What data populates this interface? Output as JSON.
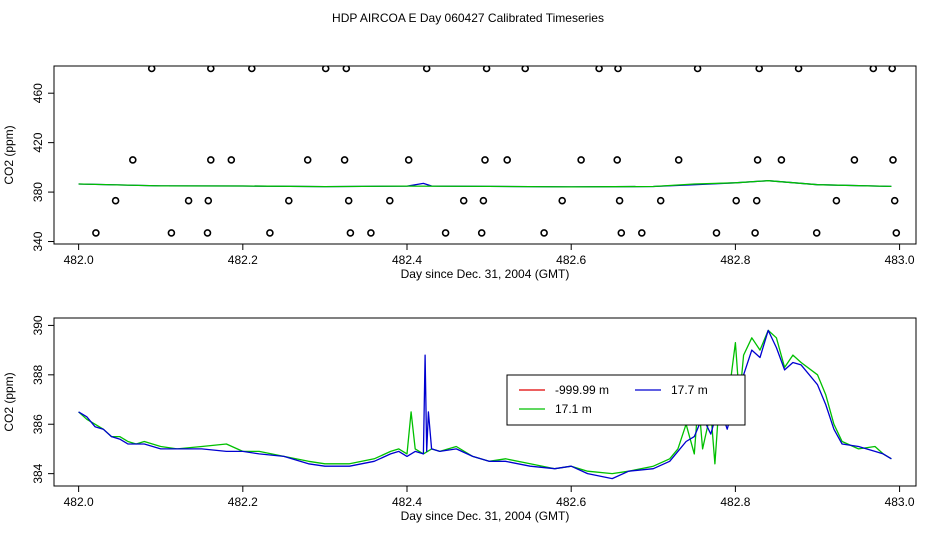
{
  "figure": {
    "title": "HDP AIRCOA E  Day 060427  Calibrated Timeseries"
  },
  "colors": {
    "red": "#e00000",
    "green": "#00c000",
    "blue": "#0000d0",
    "points": "#000000"
  },
  "chart_data": [
    {
      "type": "line",
      "xlabel": "Day since Dec. 31, 2004 (GMT)",
      "ylabel": "CO2 (ppm)",
      "xlim": [
        481.97,
        483.02
      ],
      "ylim": [
        338,
        482
      ],
      "xticks": [
        482.0,
        482.2,
        482.4,
        482.6,
        482.8,
        483.0
      ],
      "xtick_labels": [
        "482.0",
        "482.2",
        "482.4",
        "482.6",
        "482.8",
        "483.0"
      ],
      "yticks": [
        340,
        380,
        420,
        460
      ],
      "ytick_labels": [
        "340",
        "380",
        "420",
        "460"
      ],
      "series": [
        {
          "color": "blue",
          "x": [
            482.0,
            482.1,
            482.2,
            482.3,
            482.4,
            482.42,
            482.43,
            482.44,
            482.5,
            482.6,
            482.7,
            482.75,
            482.8,
            482.84,
            482.9,
            482.99
          ],
          "y": [
            386.5,
            385.0,
            384.9,
            384.4,
            384.8,
            387.0,
            384.9,
            384.8,
            384.6,
            384.2,
            384.5,
            386.0,
            387.5,
            389.2,
            386.0,
            384.6
          ]
        },
        {
          "color": "green",
          "x": [
            482.0,
            482.1,
            482.2,
            482.3,
            482.4,
            482.5,
            482.6,
            482.7,
            482.75,
            482.8,
            482.84,
            482.9,
            482.99
          ],
          "y": [
            386.5,
            385.0,
            384.9,
            384.4,
            384.8,
            384.6,
            384.2,
            384.5,
            386.5,
            387.5,
            389.2,
            386.0,
            384.6
          ]
        }
      ],
      "points": {
        "x": [
          482.021,
          482.045,
          482.066,
          482.089,
          482.113,
          482.134,
          482.157,
          482.158,
          482.161,
          482.161,
          482.186,
          482.211,
          482.233,
          482.256,
          482.279,
          482.301,
          482.324,
          482.326,
          482.329,
          482.331,
          482.356,
          482.379,
          482.402,
          482.424,
          482.447,
          482.469,
          482.491,
          482.493,
          482.495,
          482.497,
          482.522,
          482.544,
          482.567,
          482.589,
          482.612,
          482.634,
          482.656,
          482.657,
          482.659,
          482.661,
          482.686,
          482.709,
          482.731,
          482.754,
          482.777,
          482.801,
          482.824,
          482.826,
          482.827,
          482.829,
          482.856,
          482.877,
          482.899,
          482.923,
          482.945,
          482.968,
          482.991,
          482.992,
          482.994,
          482.996
        ],
        "y": [
          347,
          373,
          406,
          480,
          347,
          373,
          347,
          373,
          406,
          480,
          406,
          480,
          347,
          373,
          406,
          480,
          406,
          480,
          373,
          347,
          347,
          373,
          406,
          480,
          347,
          373,
          347,
          373,
          406,
          480,
          406,
          480,
          347,
          373,
          406,
          480,
          406,
          480,
          373,
          347,
          347,
          373,
          406,
          480,
          347,
          373,
          347,
          373,
          406,
          480,
          406,
          480,
          347,
          373,
          406,
          480,
          480,
          406,
          373,
          347
        ]
      }
    },
    {
      "type": "line",
      "xlabel": "Day since Dec. 31, 2004 (GMT)",
      "ylabel": "CO2 (ppm)",
      "xlim": [
        481.97,
        483.02
      ],
      "ylim": [
        383.5,
        390.3
      ],
      "xticks": [
        482.0,
        482.2,
        482.4,
        482.6,
        482.8,
        483.0
      ],
      "xtick_labels": [
        "482.0",
        "482.2",
        "482.4",
        "482.6",
        "482.8",
        "483.0"
      ],
      "yticks": [
        384,
        386,
        388,
        390
      ],
      "ytick_labels": [
        "384",
        "386",
        "388",
        "390"
      ],
      "legend": {
        "position": "center-right",
        "entries": [
          {
            "label": "-999.99 m",
            "color": "red"
          },
          {
            "label": "17.7 m",
            "color": "blue"
          },
          {
            "label": "17.1 m",
            "color": "green"
          }
        ]
      },
      "series": [
        {
          "name": "17.1 m",
          "color": "green",
          "x": [
            482.0,
            482.01,
            482.02,
            482.03,
            482.04,
            482.05,
            482.06,
            482.07,
            482.08,
            482.1,
            482.12,
            482.15,
            482.18,
            482.2,
            482.22,
            482.25,
            482.28,
            482.3,
            482.33,
            482.36,
            482.38,
            482.39,
            482.4,
            482.405,
            482.41,
            482.42,
            482.425,
            482.43,
            482.44,
            482.46,
            482.48,
            482.5,
            482.52,
            482.55,
            482.58,
            482.6,
            482.62,
            482.65,
            482.67,
            482.7,
            482.72,
            482.73,
            482.74,
            482.75,
            482.755,
            482.76,
            482.77,
            482.775,
            482.78,
            482.785,
            482.79,
            482.8,
            482.805,
            482.81,
            482.82,
            482.83,
            482.84,
            482.85,
            482.86,
            482.87,
            482.88,
            482.9,
            482.91,
            482.92,
            482.93,
            482.95,
            482.97,
            482.98,
            482.99
          ],
          "y": [
            386.5,
            386.2,
            386.0,
            385.8,
            385.5,
            385.5,
            385.3,
            385.2,
            385.3,
            385.1,
            385.0,
            385.1,
            385.2,
            384.9,
            384.9,
            384.7,
            384.5,
            384.4,
            384.4,
            384.6,
            384.9,
            385.0,
            384.8,
            386.5,
            385.0,
            384.8,
            384.9,
            385.0,
            384.9,
            385.1,
            384.7,
            384.5,
            384.6,
            384.4,
            384.2,
            384.3,
            384.1,
            384.0,
            384.1,
            384.3,
            384.6,
            385.0,
            386.0,
            384.8,
            387.0,
            385.0,
            386.5,
            384.4,
            386.8,
            386.0,
            386.7,
            389.3,
            387.0,
            388.8,
            389.5,
            389.0,
            389.8,
            389.5,
            388.3,
            388.8,
            388.5,
            388.0,
            387.2,
            386.0,
            385.3,
            385.0,
            385.1,
            384.8,
            384.6
          ]
        },
        {
          "name": "17.7 m",
          "color": "blue",
          "x": [
            482.0,
            482.01,
            482.02,
            482.03,
            482.04,
            482.05,
            482.06,
            482.07,
            482.08,
            482.1,
            482.12,
            482.15,
            482.18,
            482.2,
            482.22,
            482.25,
            482.28,
            482.3,
            482.33,
            482.36,
            482.38,
            482.39,
            482.4,
            482.41,
            482.42,
            482.422,
            482.424,
            482.426,
            482.43,
            482.44,
            482.46,
            482.48,
            482.5,
            482.52,
            482.55,
            482.58,
            482.6,
            482.62,
            482.65,
            482.67,
            482.7,
            482.72,
            482.73,
            482.74,
            482.75,
            482.76,
            482.77,
            482.78,
            482.79,
            482.8,
            482.81,
            482.82,
            482.83,
            482.84,
            482.85,
            482.86,
            482.87,
            482.88,
            482.9,
            482.91,
            482.92,
            482.93,
            482.95,
            482.97,
            482.98,
            482.99
          ],
          "y": [
            386.5,
            386.3,
            385.9,
            385.8,
            385.5,
            385.4,
            385.2,
            385.2,
            385.2,
            385.0,
            385.0,
            385.0,
            384.9,
            384.9,
            384.8,
            384.7,
            384.4,
            384.3,
            384.3,
            384.5,
            384.8,
            384.9,
            384.7,
            384.9,
            384.8,
            388.8,
            384.9,
            386.5,
            385.0,
            384.9,
            385.0,
            384.7,
            384.5,
            384.5,
            384.3,
            384.2,
            384.3,
            384.0,
            383.8,
            384.1,
            384.2,
            384.5,
            384.9,
            385.3,
            385.5,
            386.3,
            385.6,
            386.8,
            385.8,
            387.0,
            388.0,
            389.0,
            388.7,
            389.8,
            389.1,
            388.2,
            388.5,
            388.4,
            387.6,
            386.8,
            385.8,
            385.2,
            385.1,
            384.9,
            384.8,
            384.6
          ]
        }
      ]
    }
  ]
}
